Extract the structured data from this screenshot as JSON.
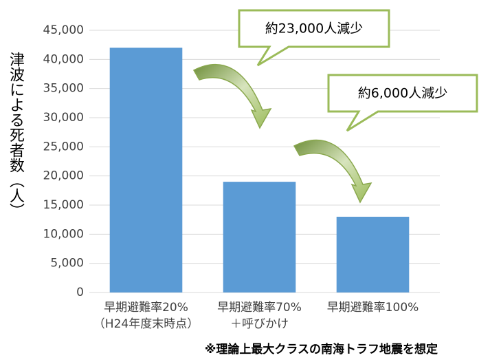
{
  "chart_data": {
    "type": "bar",
    "y_label": "津波による死者数（人）",
    "categories": [
      "早期避難率20%\n（H24年度末時点）",
      "早期避難率70%\n＋呼びかけ",
      "早期避難率100%"
    ],
    "values": [
      42000,
      19000,
      13000
    ],
    "color": "#5b9bd5",
    "ylim": [
      0,
      45000
    ],
    "yticks": [
      0,
      {
        "value": 5000,
        "label": "5,000"
      },
      {
        "value": 10000,
        "label": "10,000"
      },
      {
        "value": 15000,
        "label": "15,000"
      },
      {
        "value": 20000,
        "label": "20,000"
      },
      {
        "value": 25000,
        "label": "25,000"
      },
      {
        "value": 30000,
        "label": "30,000"
      },
      {
        "value": 35000,
        "label": "35,000"
      },
      {
        "value": 40000,
        "label": "40,000"
      },
      {
        "value": 45000,
        "label": "45,000"
      }
    ],
    "grid": true,
    "annotations": [
      "約23,000人減少",
      "約6,000人減少"
    ],
    "footnote": "※理論上最大クラスの南海トラフ地震を想定"
  }
}
